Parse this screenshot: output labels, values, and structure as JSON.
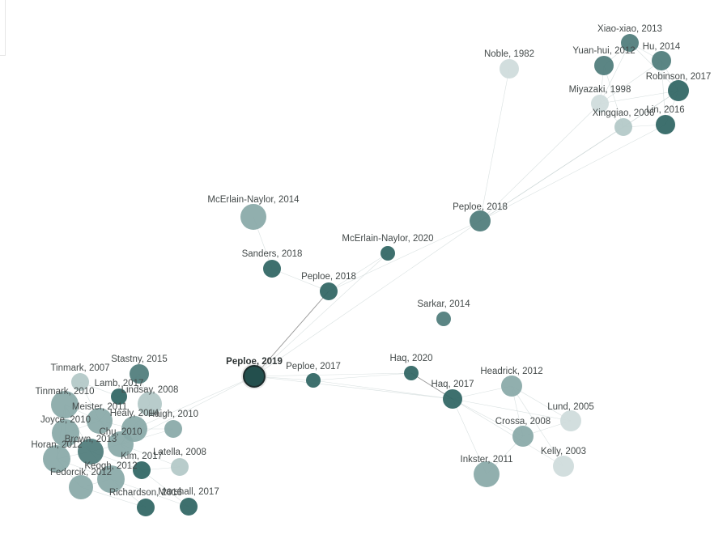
{
  "colors": {
    "dark": "#2f6563",
    "mid": "#4f7c7b",
    "light": "#89a9a8",
    "pale": "#b3c8c7",
    "palest": "#cfdcdb",
    "selected": "#234f4d",
    "selected_ring": "#1c2b2b"
  },
  "graph": {
    "nodes": [
      {
        "id": "peploe2019",
        "label": "Peploe, 2019",
        "selected": true
      },
      {
        "id": "peploe2017",
        "label": "Peploe, 2017"
      },
      {
        "id": "peploe2018a",
        "label": "Peploe, 2018"
      },
      {
        "id": "sanders2018",
        "label": "Sanders, 2018"
      },
      {
        "id": "mcnaylor2014",
        "label": "McErlain-Naylor, 2014"
      },
      {
        "id": "mcnaylor2020",
        "label": "McErlain-Naylor, 2020"
      },
      {
        "id": "peploe2018b",
        "label": "Peploe, 2018"
      },
      {
        "id": "sarkar2014",
        "label": "Sarkar, 2014"
      },
      {
        "id": "noble1982",
        "label": "Noble, 1982"
      },
      {
        "id": "xiaoxiao2013",
        "label": "Xiao-xiao, 2013"
      },
      {
        "id": "yuanhui2012",
        "label": "Yuan-hui, 2012"
      },
      {
        "id": "hu2014",
        "label": "Hu, 2014"
      },
      {
        "id": "robinson2017",
        "label": "Robinson, 2017"
      },
      {
        "id": "miyazaki1998",
        "label": "Miyazaki, 1998"
      },
      {
        "id": "xingqiao2006",
        "label": "Xingqiao, 2006"
      },
      {
        "id": "lin2016",
        "label": "Lin, 2016"
      },
      {
        "id": "haq2020",
        "label": "Haq, 2020"
      },
      {
        "id": "haq2017",
        "label": "Haq, 2017"
      },
      {
        "id": "headrick2012",
        "label": "Headrick, 2012"
      },
      {
        "id": "lund2005",
        "label": "Lund, 2005"
      },
      {
        "id": "crossa2008",
        "label": "Crossa, 2008"
      },
      {
        "id": "kelly2003",
        "label": "Kelly, 2003"
      },
      {
        "id": "inkster2011",
        "label": "Inkster, 2011"
      },
      {
        "id": "stastny2015",
        "label": "Stastny, 2015"
      },
      {
        "id": "tinmark2007",
        "label": "Tinmark, 2007"
      },
      {
        "id": "lamb2017",
        "label": "Lamb, 2017"
      },
      {
        "id": "lindsay2008",
        "label": "Lindsay, 2008"
      },
      {
        "id": "tinmark2010",
        "label": "Tinmark, 2010"
      },
      {
        "id": "meister2011",
        "label": "Meister, 2011"
      },
      {
        "id": "healy2014",
        "label": "Healy, 2014"
      },
      {
        "id": "haigh2010",
        "label": "Haigh, 2010"
      },
      {
        "id": "joyce2010",
        "label": "Joyce, 2010"
      },
      {
        "id": "chu2010",
        "label": "Chu, 2010"
      },
      {
        "id": "brown2013",
        "label": "Brown, 2013"
      },
      {
        "id": "horan2012",
        "label": "Horan, 2012"
      },
      {
        "id": "latella2008",
        "label": "Latella, 2008"
      },
      {
        "id": "kim2017",
        "label": "Kim, 2017"
      },
      {
        "id": "keogh2012",
        "label": "Keogh, 2012"
      },
      {
        "id": "fedorcik2012",
        "label": "Fedorcik, 2012"
      },
      {
        "id": "richardson2016",
        "label": "Richardson, 2016"
      },
      {
        "id": "marshall2017",
        "label": "Marshall, 2017"
      }
    ],
    "edges": [
      [
        "peploe2019",
        "peploe2018a",
        "strong"
      ],
      [
        "peploe2019",
        "peploe2017"
      ],
      [
        "peploe2019",
        "peploe2018b"
      ],
      [
        "peploe2019",
        "mcnaylor2020"
      ],
      [
        "peploe2019",
        "haq2020"
      ],
      [
        "peploe2019",
        "haq2017"
      ],
      [
        "peploe2017",
        "haq2020"
      ],
      [
        "peploe2017",
        "haq2017"
      ],
      [
        "peploe2018a",
        "mcnaylor2020"
      ],
      [
        "peploe2018a",
        "sanders2018"
      ],
      [
        "peploe2018a",
        "peploe2018b"
      ],
      [
        "sanders2018",
        "mcnaylor2014"
      ],
      [
        "peploe2018b",
        "xingqiao2006"
      ],
      [
        "peploe2018b",
        "lin2016"
      ],
      [
        "peploe2018b",
        "miyazaki1998"
      ],
      [
        "peploe2018b",
        "noble1982"
      ],
      [
        "peploe2018b",
        "robinson2017"
      ],
      [
        "xiaoxiao2013",
        "yuanhui2012"
      ],
      [
        "xiaoxiao2013",
        "hu2014"
      ],
      [
        "xiaoxiao2013",
        "miyazaki1998"
      ],
      [
        "xiaoxiao2013",
        "robinson2017"
      ],
      [
        "yuanhui2012",
        "miyazaki1998"
      ],
      [
        "yuanhui2012",
        "xingqiao2006"
      ],
      [
        "hu2014",
        "miyazaki1998"
      ],
      [
        "hu2014",
        "robinson2017"
      ],
      [
        "robinson2017",
        "xingqiao2006"
      ],
      [
        "robinson2017",
        "lin2016"
      ],
      [
        "robinson2017",
        "miyazaki1998"
      ],
      [
        "miyazaki1998",
        "xingqiao2006"
      ],
      [
        "xingqiao2006",
        "lin2016"
      ],
      [
        "hu2014",
        "lin2016"
      ],
      [
        "haq2020",
        "haq2017",
        "strong"
      ],
      [
        "haq2017",
        "headrick2012"
      ],
      [
        "haq2017",
        "lund2005"
      ],
      [
        "haq2017",
        "crossa2008"
      ],
      [
        "haq2017",
        "kelly2003"
      ],
      [
        "haq2017",
        "inkster2011"
      ],
      [
        "headrick2012",
        "crossa2008"
      ],
      [
        "headrick2012",
        "lund2005"
      ],
      [
        "headrick2012",
        "kelly2003"
      ],
      [
        "crossa2008",
        "lund2005"
      ],
      [
        "crossa2008",
        "inkster2011"
      ],
      [
        "peploe2019",
        "chu2010"
      ],
      [
        "peploe2019",
        "healy2014"
      ],
      [
        "tinmark2010",
        "meister2011"
      ],
      [
        "tinmark2010",
        "joyce2010"
      ],
      [
        "tinmark2010",
        "horan2012"
      ],
      [
        "tinmark2010",
        "brown2013"
      ],
      [
        "tinmark2007",
        "lamb2017"
      ],
      [
        "tinmark2007",
        "meister2011"
      ],
      [
        "stastny2015",
        "lamb2017"
      ],
      [
        "stastny2015",
        "lindsay2008"
      ],
      [
        "lamb2017",
        "meister2011"
      ],
      [
        "lindsay2008",
        "healy2014"
      ],
      [
        "lindsay2008",
        "chu2010"
      ],
      [
        "meister2011",
        "healy2014"
      ],
      [
        "meister2011",
        "joyce2010"
      ],
      [
        "meister2011",
        "chu2010"
      ],
      [
        "healy2014",
        "haigh2010"
      ],
      [
        "healy2014",
        "chu2010"
      ],
      [
        "haigh2010",
        "chu2010"
      ],
      [
        "joyce2010",
        "horan2012"
      ],
      [
        "joyce2010",
        "brown2013"
      ],
      [
        "chu2010",
        "brown2013"
      ],
      [
        "chu2010",
        "kim2017"
      ],
      [
        "chu2010",
        "latella2008"
      ],
      [
        "brown2013",
        "horan2012"
      ],
      [
        "brown2013",
        "keogh2012"
      ],
      [
        "brown2013",
        "kim2017"
      ],
      [
        "horan2012",
        "fedorcik2012"
      ],
      [
        "horan2012",
        "keogh2012"
      ],
      [
        "keogh2012",
        "fedorcik2012"
      ],
      [
        "keogh2012",
        "richardson2016"
      ],
      [
        "keogh2012",
        "marshall2017"
      ],
      [
        "kim2017",
        "latella2008"
      ],
      [
        "kim2017",
        "marshall2017"
      ],
      [
        "fedorcik2012",
        "richardson2016"
      ]
    ]
  }
}
